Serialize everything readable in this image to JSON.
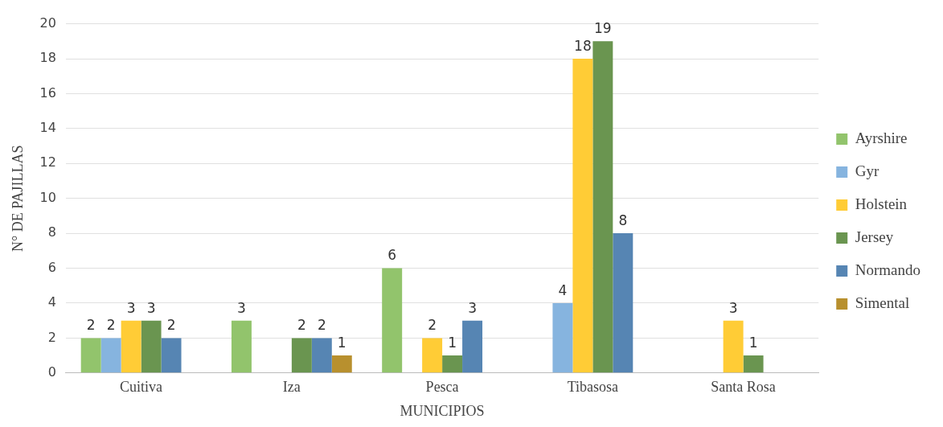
{
  "chart_data": {
    "type": "bar",
    "xlabel": "MUNICIPIOS",
    "ylabel": "N° DE PAJILLAS",
    "categories": [
      "Cuitiva",
      "Iza",
      "Pesca",
      "Tibasosa",
      "Santa Rosa"
    ],
    "series": [
      {
        "name": "Ayrshire",
        "color": "#92c46c",
        "values": [
          2,
          3,
          6,
          null,
          null
        ]
      },
      {
        "name": "Gyr",
        "color": "#86b4df",
        "values": [
          2,
          null,
          null,
          4,
          null
        ]
      },
      {
        "name": "Holstein",
        "color": "#ffcc36",
        "values": [
          3,
          null,
          2,
          18,
          3
        ]
      },
      {
        "name": "Jersey",
        "color": "#6a9550",
        "values": [
          3,
          2,
          1,
          19,
          1
        ]
      },
      {
        "name": "Normando",
        "color": "#5685b3",
        "values": [
          2,
          2,
          3,
          8,
          null
        ]
      },
      {
        "name": "Simental",
        "color": "#b8902e",
        "values": [
          null,
          1,
          null,
          null,
          null
        ]
      }
    ],
    "ylim": [
      0,
      20
    ],
    "yticks": [
      0,
      2,
      4,
      6,
      8,
      10,
      12,
      14,
      16,
      18,
      20
    ],
    "grid": "y",
    "legend": "right",
    "data_labels": true
  }
}
